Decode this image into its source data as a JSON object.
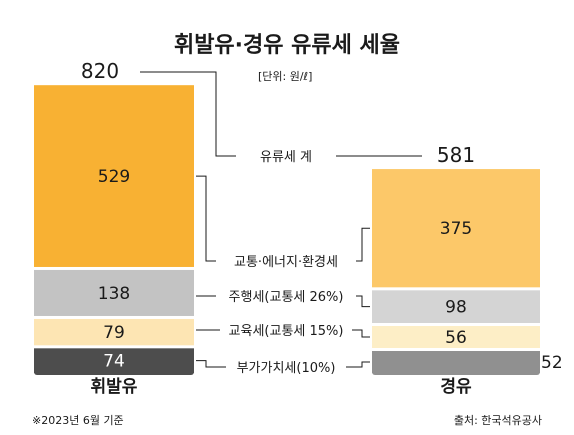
{
  "chart_data": {
    "type": "bar",
    "stacked": true,
    "title": "휘발유·경유 유류세 세율",
    "unit_note": "[단위: 원/ℓ]",
    "categories": [
      "휘발유",
      "경유"
    ],
    "totals": [
      820,
      581
    ],
    "total_label": "유류세 계",
    "series": [
      {
        "name": "교통·에너지·환경세",
        "values": [
          529,
          375
        ],
        "colors": [
          "#f8b133",
          "#fcc869"
        ]
      },
      {
        "name": "주행세(교통세 26%)",
        "values": [
          138,
          98
        ],
        "colors": [
          "#c3c3c3",
          "#d4d4d4"
        ]
      },
      {
        "name": "교육세(교통세 15%)",
        "values": [
          79,
          56
        ],
        "colors": [
          "#fde5b3",
          "#fdeec6"
        ]
      },
      {
        "name": "부가가치세(10%)",
        "values": [
          74,
          52
        ],
        "colors": [
          "#4d4d4d",
          "#909090"
        ]
      }
    ],
    "footnote": "※2023년 6월 기준",
    "source": "출처: 한국석유공사"
  }
}
